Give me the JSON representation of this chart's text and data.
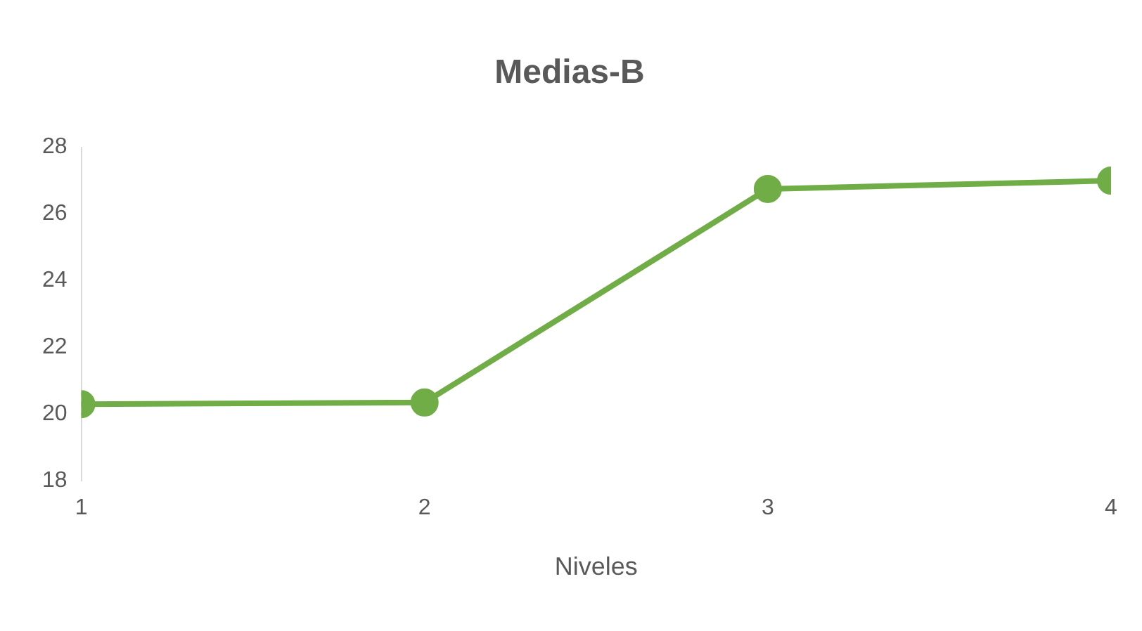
{
  "chart_data": {
    "type": "line",
    "title": "Medias-B",
    "xlabel": "Niveles",
    "x": [
      1,
      2,
      3,
      4
    ],
    "series": [
      {
        "color": "#70ad47",
        "values": [
          20.3,
          20.35,
          26.75,
          27.0
        ]
      }
    ],
    "xlim": [
      1,
      4
    ],
    "xticks": [
      1,
      2,
      3,
      4
    ],
    "ylim": [
      18,
      28
    ],
    "yticks": [
      18,
      20,
      22,
      24,
      26,
      28
    ],
    "marker": "circle"
  }
}
